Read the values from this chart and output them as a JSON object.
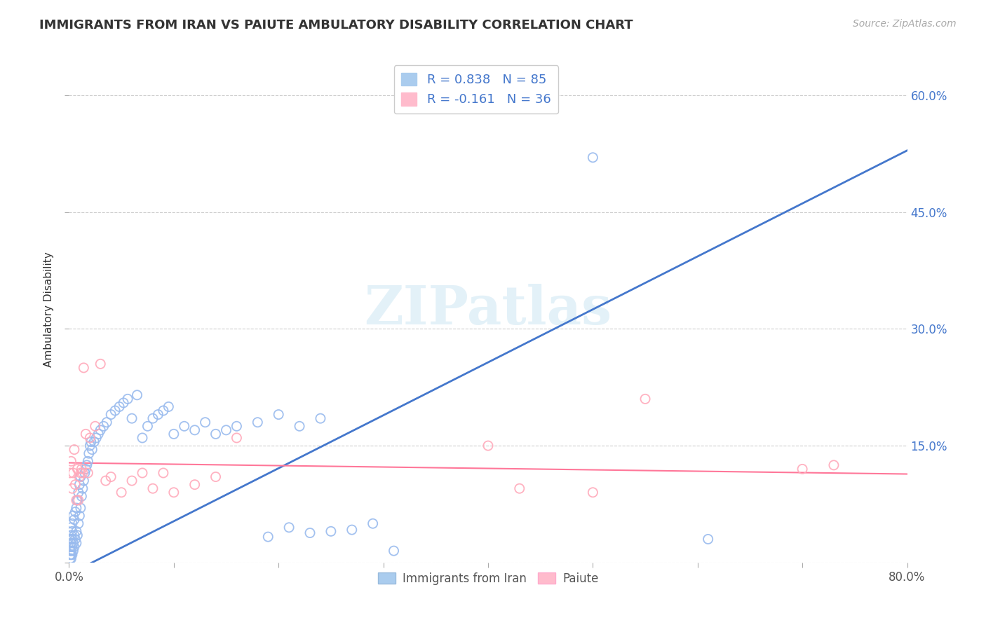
{
  "title": "IMMIGRANTS FROM IRAN VS PAIUTE AMBULATORY DISABILITY CORRELATION CHART",
  "source": "Source: ZipAtlas.com",
  "ylabel": "Ambulatory Disability",
  "xlim": [
    0.0,
    0.8
  ],
  "ylim": [
    0.0,
    0.65
  ],
  "grid_color": "#cccccc",
  "background_color": "#ffffff",
  "blue_scatter_color": "#99bbee",
  "pink_scatter_color": "#ffaabb",
  "blue_line_color": "#4477cc",
  "pink_line_color": "#ff7799",
  "blue_label_color": "#4477cc",
  "pink_label_color": "#ff7799",
  "watermark": "ZIPatlas",
  "legend_r_blue": "R = 0.838",
  "legend_n_blue": "N = 85",
  "legend_r_pink": "R = -0.161",
  "legend_n_pink": "N = 36",
  "blue_slope": 0.68,
  "blue_intercept": -0.015,
  "pink_slope": -0.018,
  "pink_intercept": 0.128,
  "blue_scatter_x": [
    0.001,
    0.001,
    0.001,
    0.001,
    0.001,
    0.002,
    0.002,
    0.002,
    0.002,
    0.002,
    0.002,
    0.003,
    0.003,
    0.003,
    0.003,
    0.003,
    0.004,
    0.004,
    0.004,
    0.005,
    0.005,
    0.005,
    0.006,
    0.006,
    0.007,
    0.007,
    0.007,
    0.008,
    0.008,
    0.009,
    0.009,
    0.01,
    0.01,
    0.011,
    0.011,
    0.012,
    0.013,
    0.014,
    0.015,
    0.016,
    0.017,
    0.018,
    0.019,
    0.02,
    0.021,
    0.022,
    0.024,
    0.026,
    0.028,
    0.03,
    0.033,
    0.036,
    0.04,
    0.044,
    0.048,
    0.052,
    0.056,
    0.06,
    0.065,
    0.07,
    0.075,
    0.08,
    0.085,
    0.09,
    0.095,
    0.1,
    0.11,
    0.12,
    0.13,
    0.14,
    0.15,
    0.16,
    0.18,
    0.2,
    0.22,
    0.24,
    0.19,
    0.21,
    0.23,
    0.25,
    0.27,
    0.29,
    0.31,
    0.5,
    0.61
  ],
  "blue_scatter_y": [
    0.005,
    0.01,
    0.015,
    0.02,
    0.03,
    0.005,
    0.01,
    0.015,
    0.025,
    0.035,
    0.045,
    0.01,
    0.02,
    0.03,
    0.04,
    0.05,
    0.015,
    0.025,
    0.06,
    0.02,
    0.035,
    0.055,
    0.03,
    0.065,
    0.025,
    0.04,
    0.07,
    0.035,
    0.08,
    0.05,
    0.09,
    0.06,
    0.1,
    0.07,
    0.11,
    0.085,
    0.095,
    0.105,
    0.115,
    0.12,
    0.125,
    0.13,
    0.14,
    0.15,
    0.155,
    0.145,
    0.155,
    0.16,
    0.165,
    0.17,
    0.175,
    0.18,
    0.19,
    0.195,
    0.2,
    0.205,
    0.21,
    0.185,
    0.215,
    0.16,
    0.175,
    0.185,
    0.19,
    0.195,
    0.2,
    0.165,
    0.175,
    0.17,
    0.18,
    0.165,
    0.17,
    0.175,
    0.18,
    0.19,
    0.175,
    0.185,
    0.033,
    0.045,
    0.038,
    0.04,
    0.042,
    0.05,
    0.015,
    0.52,
    0.03
  ],
  "pink_scatter_x": [
    0.001,
    0.002,
    0.003,
    0.004,
    0.005,
    0.006,
    0.007,
    0.008,
    0.009,
    0.01,
    0.011,
    0.012,
    0.013,
    0.014,
    0.016,
    0.018,
    0.02,
    0.025,
    0.03,
    0.035,
    0.04,
    0.05,
    0.06,
    0.07,
    0.08,
    0.09,
    0.1,
    0.12,
    0.14,
    0.16,
    0.4,
    0.43,
    0.5,
    0.55,
    0.7,
    0.73
  ],
  "pink_scatter_y": [
    0.115,
    0.13,
    0.095,
    0.115,
    0.145,
    0.1,
    0.08,
    0.12,
    0.08,
    0.11,
    0.115,
    0.12,
    0.115,
    0.25,
    0.165,
    0.115,
    0.16,
    0.175,
    0.255,
    0.105,
    0.11,
    0.09,
    0.105,
    0.115,
    0.095,
    0.115,
    0.09,
    0.1,
    0.11,
    0.16,
    0.15,
    0.095,
    0.09,
    0.21,
    0.12,
    0.125
  ]
}
